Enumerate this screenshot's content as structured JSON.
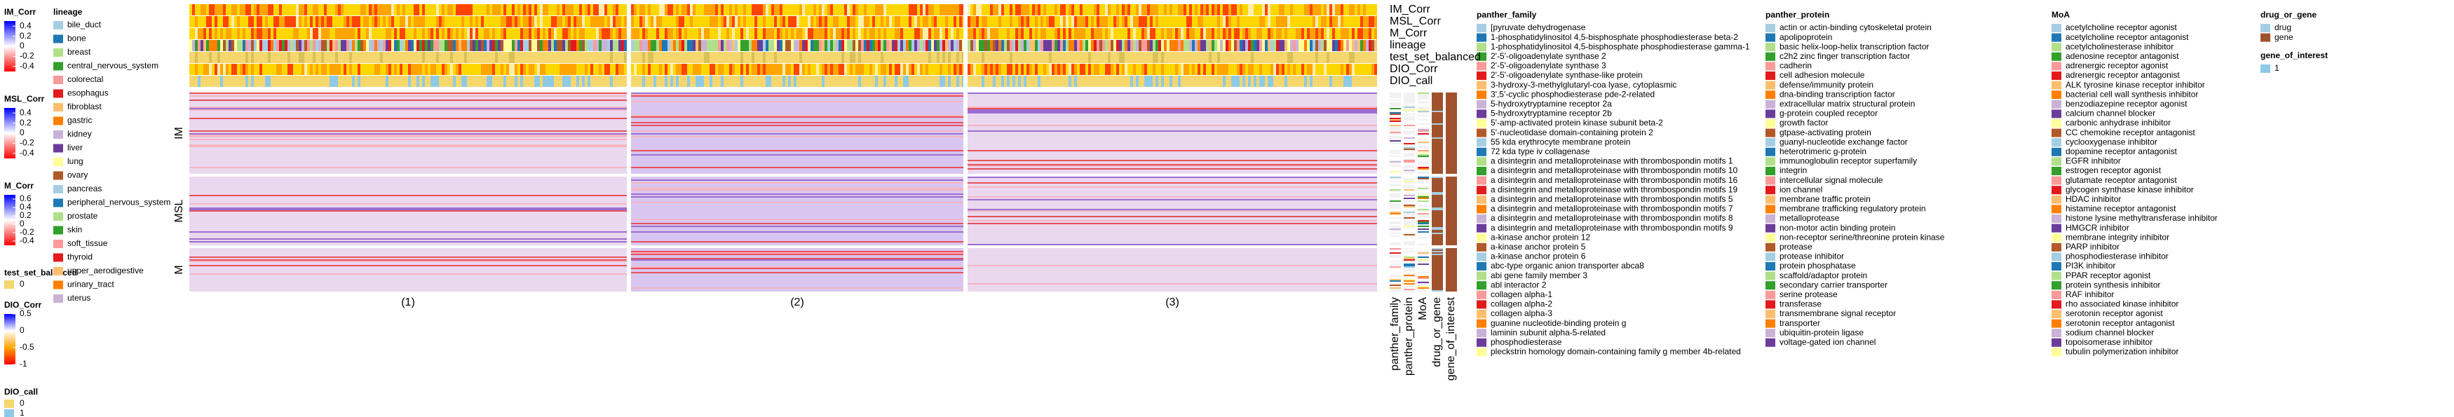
{
  "palette": [
    "#a6cee3",
    "#1f78b4",
    "#b2df8a",
    "#33a02c",
    "#fb9a99",
    "#e31a1c",
    "#fdbf6f",
    "#ff7f00",
    "#cab2d6",
    "#6a3d9a",
    "#ffff99",
    "#b15928"
  ],
  "left_legends": [
    {
      "title": "IM_Corr",
      "lim": [
        -0.5,
        0.5
      ],
      "ticks": [
        0.4,
        0.2,
        0,
        -0.2,
        -0.4
      ],
      "colors": [
        "#ff0000",
        "#ffffff",
        "#0000ff"
      ]
    },
    {
      "title": "MSL_Corr",
      "lim": [
        -0.5,
        0.5
      ],
      "ticks": [
        0.4,
        0.2,
        0,
        -0.2,
        -0.4
      ],
      "colors": [
        "#ff0000",
        "#ffffff",
        "#0000ff"
      ]
    },
    {
      "title": "M_Corr",
      "lim": [
        -0.5,
        0.7
      ],
      "ticks": [
        0.6,
        0.4,
        0.2,
        0,
        -0.2,
        -0.4
      ],
      "colors": [
        "#ff0000",
        "#ffffff",
        "#0000ff"
      ]
    },
    {
      "title": "test_set_balanced",
      "items": [
        0
      ],
      "colors": [
        "#f5d76e"
      ]
    },
    {
      "title": "DIO_Corr",
      "lim": [
        -1,
        0.5
      ],
      "ticks": [
        0.5,
        0,
        -0.5,
        -1
      ],
      "colors": [
        "#ff0000",
        "#ffa500",
        "#ffffff",
        "#0000ff"
      ]
    },
    {
      "title": "DIO_call",
      "items": [
        0,
        1
      ],
      "colors": [
        "#f5d76e",
        "#8ecae6"
      ]
    }
  ],
  "lineage_legend": {
    "title": "lineage",
    "items": [
      "bile_duct",
      "bone",
      "breast",
      "central_nervous_system",
      "colorectal",
      "esophagus",
      "fibroblast",
      "gastric",
      "kidney",
      "liver",
      "lung",
      "ovary",
      "pancreas",
      "peripheral_nervous_system",
      "prostate",
      "skin",
      "soft_tissue",
      "thyroid",
      "upper_aerodigestive",
      "urinary_tract",
      "uterus"
    ]
  },
  "right_legends": [
    {
      "title": "panther_family",
      "items": [
        "[pyruvate dehydrogenase",
        "1-phosphatidylinositol 4,5-bisphosphate phosphodiesterase beta-2",
        "1-phosphatidylinositol 4,5-bisphosphate phosphodiesterase gamma-1",
        "2'-5'-oligoadenylate synthase 2",
        "2'-5'-oligoadenylate synthase 3",
        "2'-5'-oligoadenylate synthase-like protein",
        "3-hydroxy-3-methylglutaryl-coa lyase, cytoplasmic",
        "3',5'-cyclic phosphodiesterase pde-2-related",
        "5-hydroxytryptamine receptor 2a",
        "5-hydroxytryptamine receptor 2b",
        "5'-amp-activated protein kinase subunit beta-2",
        "5'-nucleotidase domain-containing protein 2",
        "55 kda erythrocyte membrane protein",
        "72 kda type iv collagenase",
        "a disintegrin and metalloproteinase with thrombospondin motifs 1",
        "a disintegrin and metalloproteinase with thrombospondin motifs 10",
        "a disintegrin and metalloproteinase with thrombospondin motifs 16",
        "a disintegrin and metalloproteinase with thrombospondin motifs 19",
        "a disintegrin and metalloproteinase with thrombospondin motifs 5",
        "a disintegrin and metalloproteinase with thrombospondin motifs 7",
        "a disintegrin and metalloproteinase with thrombospondin motifs 8",
        "a disintegrin and metalloproteinase with thrombospondin motifs 9",
        "a-kinase anchor protein 12",
        "a-kinase anchor protein 5",
        "a-kinase anchor protein 6",
        "abc-type organic anion transporter abca8",
        "abi gene family member 3",
        "abl interactor 2",
        "collagen alpha-1",
        "collagen alpha-2",
        "collagen alpha-3",
        "guanine nucleotide-binding protein g",
        "laminin subunit alpha-5-related",
        "phosphodiesterase",
        "pleckstrin homology domain-containing family g member 4b-related"
      ]
    },
    {
      "title": "panther_protein",
      "items": [
        "actin or actin-binding cytoskeletal protein",
        "apolipoprotein",
        "basic helix-loop-helix transcription factor",
        "c2h2 zinc finger transcription factor",
        "cadherin",
        "cell adhesion molecule",
        "defense/immunity protein",
        "dna-binding transcription factor",
        "extracellular matrix structural protein",
        "g-protein coupled receptor",
        "growth factor",
        "gtpase-activating protein",
        "guanyl-nucleotide exchange factor",
        "heterotrimeric g-protein",
        "immunoglobulin receptor superfamily",
        "integrin",
        "intercellular signal molecule",
        "ion channel",
        "membrane traffic protein",
        "membrane trafficking regulatory protein",
        "metalloprotease",
        "non-motor actin binding protein",
        "non-receptor serine/threonine protein kinase",
        "protease",
        "protease inhibitor",
        "protein phosphatase",
        "scaffold/adaptor protein",
        "secondary carrier transporter",
        "serine protease",
        "transferase",
        "transmembrane signal receptor",
        "transporter",
        "ubiquitin-protein ligase",
        "voltage-gated ion channel"
      ]
    },
    {
      "title": "MoA",
      "items": [
        "acetylcholine receptor agonist",
        "acetylcholine receptor antagonist",
        "acetylcholinesterase inhibitor",
        "adenosine receptor antagonist",
        "adrenergic receptor agonist",
        "adrenergic receptor antagonist",
        "ALK tyrosine kinase receptor inhibitor",
        "bacterial cell wall synthesis inhibitor",
        "benzodiazepine receptor agonist",
        "calcium channel blocker",
        "carbonic anhydrase inhibitor",
        "CC chemokine receptor antagonist",
        "cyclooxygenase inhibitor",
        "dopamine receptor antagonist",
        "EGFR inhibitor",
        "estrogen receptor agonist",
        "glutamate receptor antagonist",
        "glycogen synthase kinase inhibitor",
        "HDAC inhibitor",
        "histamine receptor antagonist",
        "histone lysine methyltransferase inhibitor",
        "HMGCR inhibitor",
        "membrane integrity inhibitor",
        "PARP inhibitor",
        "phosphodiesterase inhibitor",
        "PI3K inhibitor",
        "PPAR receptor agonist",
        "protein synthesis inhibitor",
        "RAF inhibitor",
        "rho associated kinase inhibitor",
        "serotonin receptor agonist",
        "serotonin receptor antagonist",
        "sodium channel blocker",
        "topoisomerase inhibitor",
        "tubulin polymerization inhibitor"
      ]
    },
    {
      "title": "drug_or_gene",
      "items": [
        "drug",
        "gene"
      ],
      "colors": [
        "#a6cee3",
        "#a0522d"
      ]
    },
    {
      "title": "gene_of_interest",
      "items": [
        1
      ],
      "colors": [
        "#8ecae6"
      ]
    }
  ],
  "heatmap": {
    "column_annotations": [
      "IM_Corr",
      "MSL_Corr",
      "M_Corr",
      "lineage",
      "test_set_balanced",
      "DIO_Corr",
      "DIO_call"
    ],
    "row_groups": [
      "IM",
      "MSL",
      "M"
    ],
    "column_groups": [
      "(1)",
      "(2)",
      "(3)"
    ],
    "row_annotations": [
      "panther_family",
      "panther_protein",
      "MoA",
      "drug_or_gene",
      "gene_of_interest"
    ]
  }
}
